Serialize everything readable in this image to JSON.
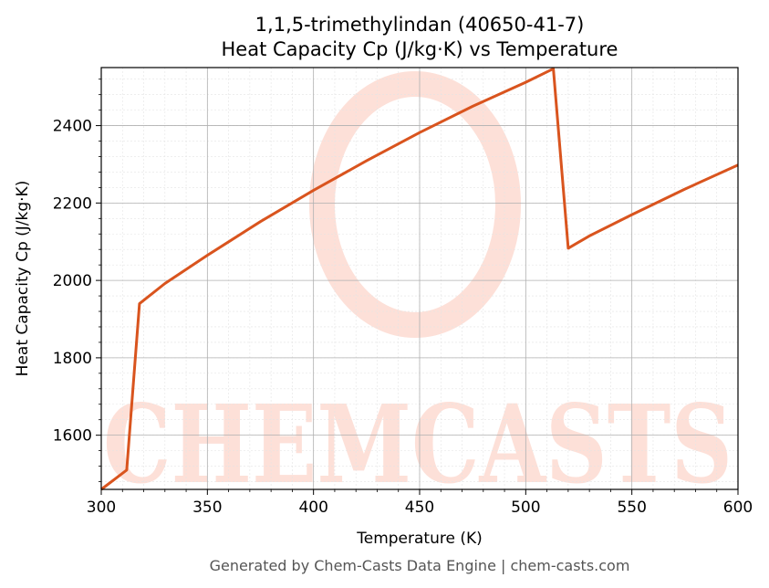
{
  "chart_data": {
    "type": "line",
    "title": [
      "1,1,5-trimethylindan (40650-41-7)",
      "Heat Capacity Cp (J/kg·K) vs Temperature"
    ],
    "xlabel": "Temperature (K)",
    "ylabel": "Heat Capacity Cp (J/kg·K)",
    "xlim": [
      300,
      600
    ],
    "ylim": [
      1460,
      2550
    ],
    "xticks": [
      300,
      350,
      400,
      450,
      500,
      550,
      600
    ],
    "yticks": [
      1600,
      1800,
      2000,
      2200,
      2400
    ],
    "grid": true,
    "series": [
      {
        "color": "#d9541e",
        "x": [
          300,
          312,
          318,
          330,
          350,
          375,
          400,
          425,
          450,
          475,
          500,
          513,
          520,
          530,
          550,
          575,
          600
        ],
        "y": [
          1460,
          1510,
          1940,
          1992,
          2065,
          2152,
          2233,
          2309,
          2382,
          2450,
          2512,
          2547,
          2083,
          2115,
          2170,
          2236,
          2298
        ]
      }
    ]
  },
  "footer": "Generated by Chem-Casts Data Engine | chem-casts.com",
  "watermark": "CHEMCASTS",
  "watermark_color": "#fde0d8"
}
